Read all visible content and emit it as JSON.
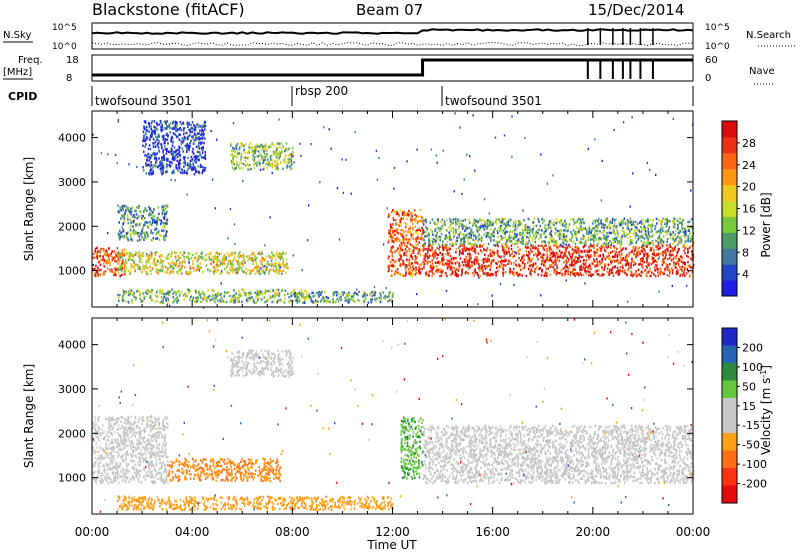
{
  "header": {
    "title": "Blackstone (fitACF)",
    "beam": "Beam 07",
    "date": "15/Dec/2014"
  },
  "top_panels": {
    "nsky_label": "N.Sky",
    "nsky_ticks": [
      "10^5",
      "10^0"
    ],
    "nsearch_label": "N.Search",
    "nsearch_ticks": [
      "10^5",
      "10^0"
    ],
    "freq_label": "Freq.",
    "freq_unit": "[MHz]",
    "freq_ticks": [
      "18",
      "8"
    ],
    "nave_label": "Nave",
    "nave_ticks": [
      "60",
      "0"
    ],
    "cpid_label": "CPID",
    "cpid_segments": [
      {
        "name": "twofsound 3501",
        "start_hour": 0.0
      },
      {
        "name": "rbsp 200",
        "start_hour": 8.0
      },
      {
        "name": "twofsound 3501",
        "start_hour": 14.0
      }
    ]
  },
  "chart_data": [
    {
      "type": "heatmap",
      "panel": "power",
      "ylabel": "Slant Range [km]",
      "xlabel": "Time UT",
      "x_ticks": [
        "00:00",
        "04:00",
        "08:00",
        "12:00",
        "16:00",
        "20:00",
        "00:00"
      ],
      "xlim_hours": [
        0,
        24
      ],
      "ylim": [
        180,
        4600
      ],
      "y_ticks": [
        1000,
        2000,
        3000,
        4000
      ],
      "colorbar": {
        "label": "Power [dB]",
        "ticks": [
          "4",
          "8",
          "12",
          "16",
          "20",
          "24",
          "28"
        ],
        "colors": [
          "#1e1ee6",
          "#1e46c8",
          "#3c78a0",
          "#4b9b64",
          "#78c83c",
          "#c8dc28",
          "#f0c81e",
          "#ff9614",
          "#ff6414",
          "#f03214",
          "#dc0a0a"
        ]
      },
      "regions": [
        {
          "t": [
            0.0,
            1.3
          ],
          "r": [
            900,
            1550
          ],
          "level": 0.85
        },
        {
          "t": [
            1.0,
            3.0
          ],
          "r": [
            1700,
            2500
          ],
          "level": 0.3
        },
        {
          "t": [
            1.0,
            7.8
          ],
          "r": [
            950,
            1450
          ],
          "level": 0.55
        },
        {
          "t": [
            1.0,
            8.5
          ],
          "r": [
            300,
            600
          ],
          "level": 0.4
        },
        {
          "t": [
            2.0,
            4.5
          ],
          "r": [
            3200,
            4400
          ],
          "level": 0.1
        },
        {
          "t": [
            5.5,
            8.0
          ],
          "r": [
            3300,
            3900
          ],
          "level": 0.4
        },
        {
          "t": [
            8.0,
            12.0
          ],
          "r": [
            300,
            550
          ],
          "level": 0.35
        },
        {
          "t": [
            11.8,
            13.2
          ],
          "r": [
            900,
            2400
          ],
          "level": 0.8
        },
        {
          "t": [
            13.2,
            24.0
          ],
          "r": [
            900,
            1600
          ],
          "level": 0.9
        },
        {
          "t": [
            13.2,
            24.0
          ],
          "r": [
            1600,
            2200
          ],
          "level": 0.35
        }
      ]
    },
    {
      "type": "heatmap",
      "panel": "velocity",
      "ylabel": "Slant Range [km]",
      "xlabel": "Time UT",
      "x_ticks": [
        "00:00",
        "04:00",
        "08:00",
        "12:00",
        "16:00",
        "20:00",
        "00:00"
      ],
      "xlim_hours": [
        0,
        24
      ],
      "ylim": [
        180,
        4600
      ],
      "y_ticks": [
        1000,
        2000,
        3000,
        4000
      ],
      "colorbar": {
        "label": "Velocity [m s",
        "label_exp": "-1",
        "ticks": [
          "200",
          "100",
          "50",
          "15",
          "-15",
          "-50",
          "-100",
          "-200"
        ],
        "colors": [
          "#1e28c8",
          "#2864b4",
          "#2d8c3c",
          "#64c83c",
          "#c8c8c8",
          "#c8c8c8",
          "#ffa014",
          "#ff6e14",
          "#ff3214",
          "#e60a0a"
        ]
      },
      "regions": [
        {
          "t": [
            0.0,
            3.0
          ],
          "r": [
            900,
            2400
          ],
          "vel": "ground"
        },
        {
          "t": [
            3.0,
            7.5
          ],
          "r": [
            950,
            1450
          ],
          "vel": "neg_mid"
        },
        {
          "t": [
            1.0,
            12.0
          ],
          "r": [
            300,
            600
          ],
          "vel": "neg_low"
        },
        {
          "t": [
            5.5,
            8.0
          ],
          "r": [
            3300,
            3900
          ],
          "vel": "ground"
        },
        {
          "t": [
            12.3,
            13.2
          ],
          "r": [
            1000,
            2400
          ],
          "vel": "pos"
        },
        {
          "t": [
            13.2,
            24.0
          ],
          "r": [
            900,
            2200
          ],
          "vel": "ground"
        }
      ]
    }
  ]
}
